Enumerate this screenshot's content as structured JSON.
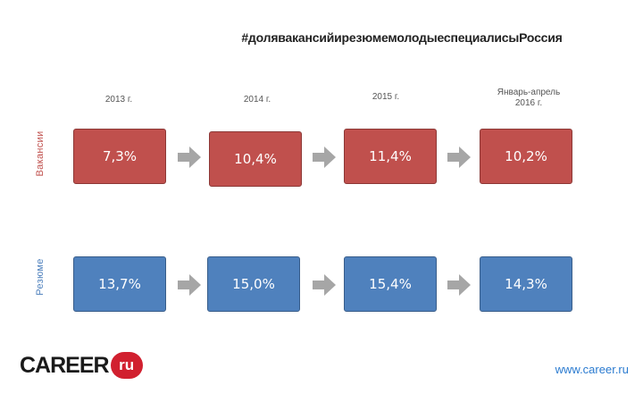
{
  "title": "#долявакансийирезюмемолодыеспециалисыРоссия",
  "columns": [
    "2013 г.",
    "2014 г.",
    "2015 г.",
    "Январь-апрель\n2016 г."
  ],
  "rows": [
    {
      "label": "Вакансии",
      "values": [
        "7,3%",
        "10,4%",
        "11,4%",
        "10,2%"
      ],
      "color": "#c0504d"
    },
    {
      "label": "Резюме",
      "values": [
        "13,7%",
        "15,0%",
        "15,4%",
        "14,3%"
      ],
      "color": "#4f81bd"
    }
  ],
  "logo": {
    "text": "CAREER",
    "badge": "ru"
  },
  "site": "www.career.ru"
}
